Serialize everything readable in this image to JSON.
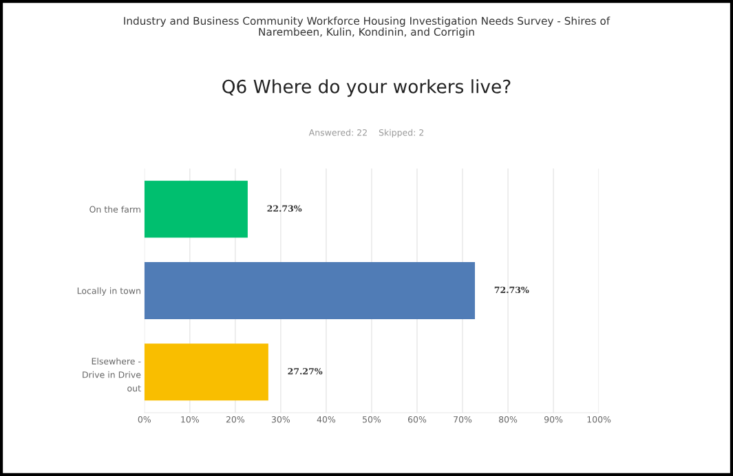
{
  "chart_data": {
    "type": "bar",
    "orientation": "horizontal",
    "title": "Industry and Business Community Workforce Housing Investigation Needs Survey - Shires of\nNarembeen, Kulin, Kondinin, and Corrigin",
    "subtitle": "Q6 Where do your workers live?",
    "annotations": [
      "Answered: 22    Skipped: 2"
    ],
    "categories": [
      "On the farm",
      "Locally in town",
      "Elsewhere -\nDrive in Drive\nout"
    ],
    "values": [
      22.73,
      72.73,
      27.27
    ],
    "colors": [
      "#00bf6f",
      "#507cb6",
      "#f9be00"
    ],
    "value_labels": [
      "22.73%",
      "72.73%",
      "27.27%"
    ],
    "xlim": [
      0,
      100
    ],
    "xticks": [
      {
        "value": 0,
        "label": "0%"
      },
      {
        "value": 10,
        "label": "10%"
      },
      {
        "value": 20,
        "label": "20%"
      },
      {
        "value": 30,
        "label": "30%"
      },
      {
        "value": 40,
        "label": "40%"
      },
      {
        "value": 50,
        "label": "50%"
      },
      {
        "value": 60,
        "label": "60%"
      },
      {
        "value": 70,
        "label": "70%"
      },
      {
        "value": 80,
        "label": "80%"
      },
      {
        "value": 90,
        "label": "90%"
      },
      {
        "value": 100,
        "label": "100%"
      }
    ],
    "grid": "x"
  }
}
